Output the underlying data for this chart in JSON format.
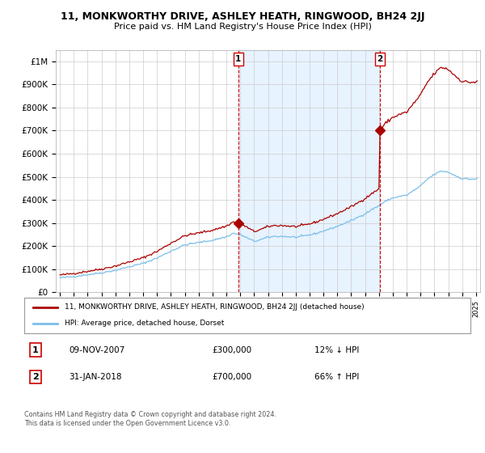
{
  "title": "11, MONKWORTHY DRIVE, ASHLEY HEATH, RINGWOOD, BH24 2JJ",
  "subtitle": "Price paid vs. HM Land Registry's House Price Index (HPI)",
  "ylim": [
    0,
    1050000
  ],
  "yticks": [
    0,
    100000,
    200000,
    300000,
    400000,
    500000,
    600000,
    700000,
    800000,
    900000,
    1000000
  ],
  "ytick_labels": [
    "£0",
    "£100K",
    "£200K",
    "£300K",
    "£400K",
    "£500K",
    "£600K",
    "£700K",
    "£800K",
    "£900K",
    "£1M"
  ],
  "sale1_x": 2007.86,
  "sale1_price": 300000,
  "sale2_x": 2018.08,
  "sale2_price": 700000,
  "hpi_color": "#7bbfea",
  "price_color": "#aa0000",
  "shade_color": "#ddeeff",
  "vline_color": "#cc0000",
  "legend_label1": "11, MONKWORTHY DRIVE, ASHLEY HEATH, RINGWOOD, BH24 2JJ (detached house)",
  "legend_label2": "HPI: Average price, detached house, Dorset",
  "table_row1": [
    "1",
    "09-NOV-2007",
    "£300,000",
    "12% ↓ HPI"
  ],
  "table_row2": [
    "2",
    "31-JAN-2018",
    "£700,000",
    "66% ↑ HPI"
  ],
  "footnote": "Contains HM Land Registry data © Crown copyright and database right 2024.\nThis data is licensed under the Open Government Licence v3.0.",
  "bg_color": "#ffffff",
  "grid_color": "#cccccc",
  "xlim_left": 1994.7,
  "xlim_right": 2025.3
}
